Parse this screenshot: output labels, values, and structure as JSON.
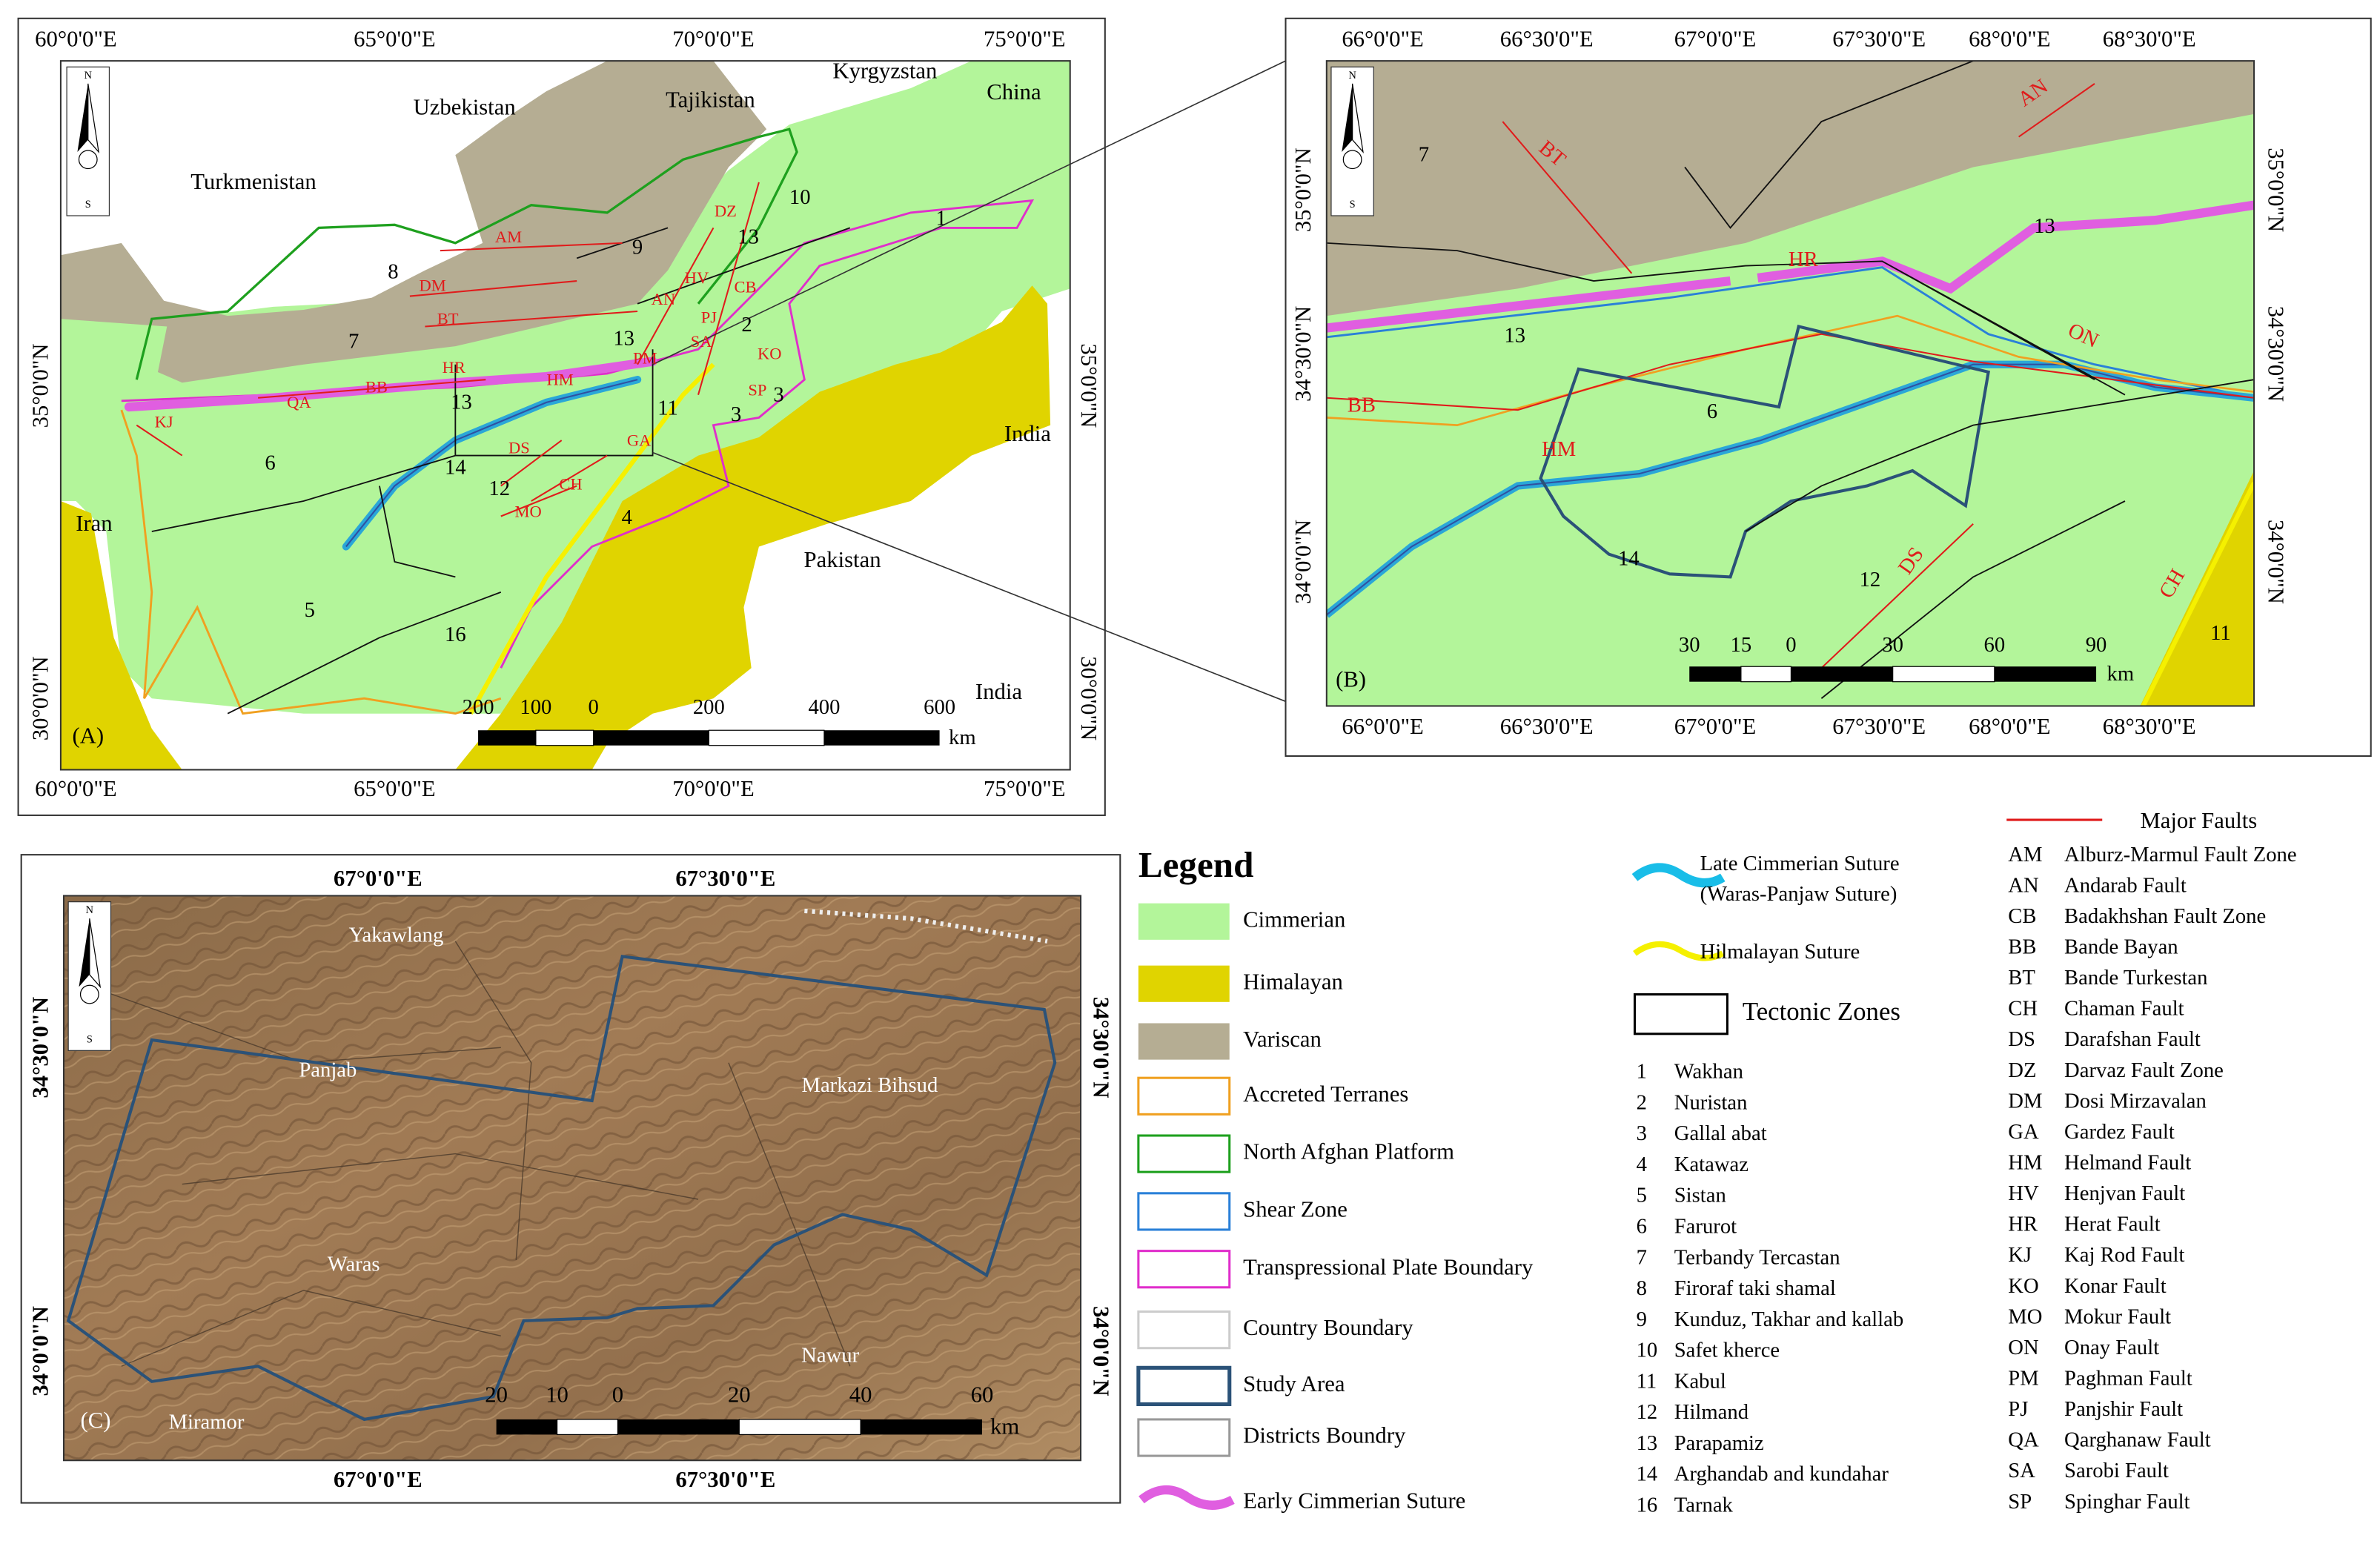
{
  "panel_a": {
    "label": "(A)",
    "lon_labels": [
      "60°0'0\"E",
      "65°0'0\"E",
      "70°0'0\"E",
      "75°0'0\"E"
    ],
    "lat_labels": [
      "35°0'0\"N",
      "30°0'0\"N"
    ],
    "countries": [
      "Turkmenistan",
      "Uzbekistan",
      "Tajikistan",
      "Kyrgyzstan",
      "China",
      "Iran",
      "India",
      "Pakistan",
      "India"
    ],
    "faults": [
      "AM",
      "DM",
      "BT",
      "BB",
      "QA",
      "KJ",
      "HR",
      "HM",
      "DZ",
      "AN",
      "HV",
      "PJ",
      "CB",
      "PM",
      "SA",
      "KO",
      "SP",
      "GA",
      "DS",
      "MO",
      "CH"
    ],
    "zones": [
      "1",
      "2",
      "3",
      "3",
      "4",
      "5",
      "6",
      "7",
      "8",
      "9",
      "10",
      "11",
      "12",
      "13",
      "13",
      "13",
      "14",
      "16"
    ],
    "scale": [
      "200",
      "100",
      "0",
      "200",
      "400",
      "600",
      "km"
    ],
    "north": [
      "N",
      "S"
    ]
  },
  "panel_b": {
    "label": "(B)",
    "lon_labels": [
      "66°0'0\"E",
      "66°30'0\"E",
      "67°0'0\"E",
      "67°30'0\"E",
      "68°0'0\"E",
      "68°30'0\"E"
    ],
    "lat_labels": [
      "35°0'0\"N",
      "34°30'0\"N",
      "34°0'0\"N"
    ],
    "faults": [
      "BT",
      "AN",
      "HR",
      "ON",
      "BB",
      "HM",
      "DS",
      "CH"
    ],
    "zones": [
      "7",
      "13",
      "13",
      "6",
      "14",
      "12",
      "11"
    ],
    "scale": [
      "30",
      "15",
      "0",
      "30",
      "60",
      "90",
      "km"
    ],
    "north": [
      "N",
      "S"
    ]
  },
  "panel_c": {
    "label": "(C)",
    "lon_labels": [
      "67°0'0\"E",
      "67°30'0\"E"
    ],
    "lat_labels": [
      "34°30'0\"N",
      "34°0'0\"N"
    ],
    "places": [
      "Yakawlang",
      "Panjab",
      "Markazi Bihsud",
      "Waras",
      "Nawur",
      "Miramor"
    ],
    "scale": [
      "20",
      "10",
      "0",
      "20",
      "40",
      "60",
      "km"
    ],
    "north": [
      "N",
      "S"
    ]
  },
  "legend": {
    "title": "Legend",
    "units": [
      "Cimmerian",
      "Himalayan",
      "Variscan",
      "Accreted Terranes",
      "North Afghan Platform",
      "Shear Zone",
      "Transpressional Plate Boundary",
      "Country Boundary",
      "Study Area",
      "Districts Boundry",
      "Early Cimmerian Suture"
    ],
    "sutures": [
      "Late Cimmerian Suture",
      "(Waras-Panjaw Suture)",
      "Hilmalayan Suture"
    ],
    "tectonic_zones": {
      "title": "Tectonic Zones",
      "items": [
        [
          "1",
          "Wakhan"
        ],
        [
          "2",
          "Nuristan"
        ],
        [
          "3",
          "Gallal abat"
        ],
        [
          "4",
          "Katawaz"
        ],
        [
          "5",
          "Sistan"
        ],
        [
          "6",
          "Farurot"
        ],
        [
          "7",
          "Terbandy Tercastan"
        ],
        [
          "8",
          "Firoraf taki shamal"
        ],
        [
          "9",
          "Kunduz, Takhar and kallab"
        ],
        [
          "10",
          "Safet kherce"
        ],
        [
          "11",
          "Kabul"
        ],
        [
          "12",
          "Hilmand"
        ],
        [
          "13",
          "Parapamiz"
        ],
        [
          "14",
          "Arghandab and kundahar"
        ],
        [
          "16",
          "Tarnak"
        ]
      ]
    },
    "faults": {
      "title": "Major Faults",
      "items": [
        [
          "AM",
          "Alburz-Marmul Fault Zone"
        ],
        [
          "AN",
          "Andarab Fault"
        ],
        [
          "CB",
          "Badakhshan Fault Zone"
        ],
        [
          "BB",
          "Bande Bayan"
        ],
        [
          "BT",
          "Bande Turkestan"
        ],
        [
          "CH",
          "Chaman Fault"
        ],
        [
          "DS",
          "Darafshan Fault"
        ],
        [
          "DZ",
          "Darvaz Fault Zone"
        ],
        [
          "DM",
          "Dosi Mirzavalan"
        ],
        [
          "GA",
          "Gardez Fault"
        ],
        [
          "HM",
          "Helmand Fault"
        ],
        [
          "HV",
          "Henjvan Fault"
        ],
        [
          "HR",
          "Herat Fault"
        ],
        [
          "KJ",
          "Kaj Rod Fault"
        ],
        [
          "KO",
          "Konar Fault"
        ],
        [
          "MO",
          "Mokur Fault"
        ],
        [
          "ON",
          "Onay Fault"
        ],
        [
          "PM",
          "Paghman Fault"
        ],
        [
          "PJ",
          "Panjshir Fault"
        ],
        [
          "QA",
          "Qarghanaw Fault"
        ],
        [
          "SA",
          "Sarobi Fault"
        ],
        [
          "SP",
          "Spinghar Fault"
        ]
      ]
    }
  }
}
